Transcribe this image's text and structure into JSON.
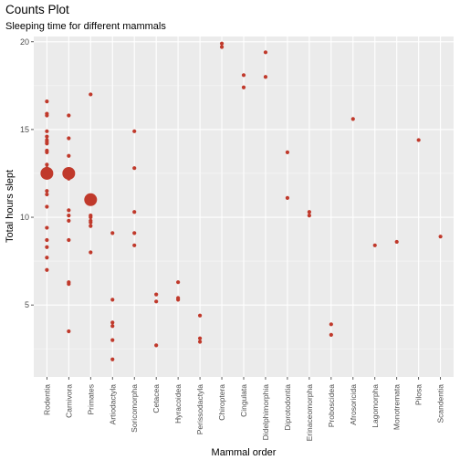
{
  "chart_data": {
    "type": "scatter",
    "title": "Counts Plot",
    "subtitle": "Sleeping time for different mammals",
    "xlabel": "Mammal order",
    "ylabel": "Total hours slept",
    "categories": [
      "Rodentia",
      "Carnivora",
      "Primates",
      "Artiodactyla",
      "Soricomorpha",
      "Cetacea",
      "Hyracoidea",
      "Perissodactyla",
      "Chiroptera",
      "Cingulata",
      "Didelphimorphia",
      "Diprotodontia",
      "Erinaceomorpha",
      "Proboscidea",
      "Afrosoricida",
      "Lagomorpha",
      "Monotremata",
      "Pilosa",
      "Scandentia"
    ],
    "ylim": [
      0.9,
      20.3
    ],
    "yticks": [
      5,
      10,
      15,
      20
    ],
    "grid": true,
    "point_color": "#c0392b",
    "panel_color": "#ebebeb",
    "points": [
      {
        "x": "Rodentia",
        "y": 16.6,
        "n": 1
      },
      {
        "x": "Rodentia",
        "y": 15.9,
        "n": 1
      },
      {
        "x": "Rodentia",
        "y": 15.8,
        "n": 1
      },
      {
        "x": "Rodentia",
        "y": 14.9,
        "n": 1
      },
      {
        "x": "Rodentia",
        "y": 14.6,
        "n": 1
      },
      {
        "x": "Rodentia",
        "y": 14.4,
        "n": 1
      },
      {
        "x": "Rodentia",
        "y": 14.3,
        "n": 1
      },
      {
        "x": "Rodentia",
        "y": 14.2,
        "n": 1
      },
      {
        "x": "Rodentia",
        "y": 13.8,
        "n": 1
      },
      {
        "x": "Rodentia",
        "y": 13.7,
        "n": 1
      },
      {
        "x": "Rodentia",
        "y": 13.0,
        "n": 1
      },
      {
        "x": "Rodentia",
        "y": 12.8,
        "n": 1
      },
      {
        "x": "Rodentia",
        "y": 12.5,
        "n": 3
      },
      {
        "x": "Rodentia",
        "y": 11.5,
        "n": 1
      },
      {
        "x": "Rodentia",
        "y": 11.3,
        "n": 1
      },
      {
        "x": "Rodentia",
        "y": 10.6,
        "n": 1
      },
      {
        "x": "Rodentia",
        "y": 9.4,
        "n": 1
      },
      {
        "x": "Rodentia",
        "y": 8.7,
        "n": 1
      },
      {
        "x": "Rodentia",
        "y": 8.3,
        "n": 1
      },
      {
        "x": "Rodentia",
        "y": 7.7,
        "n": 1
      },
      {
        "x": "Rodentia",
        "y": 7.0,
        "n": 1
      },
      {
        "x": "Carnivora",
        "y": 15.8,
        "n": 1
      },
      {
        "x": "Carnivora",
        "y": 14.5,
        "n": 1
      },
      {
        "x": "Carnivora",
        "y": 13.5,
        "n": 1
      },
      {
        "x": "Carnivora",
        "y": 12.5,
        "n": 3
      },
      {
        "x": "Carnivora",
        "y": 12.2,
        "n": 1
      },
      {
        "x": "Carnivora",
        "y": 10.4,
        "n": 1
      },
      {
        "x": "Carnivora",
        "y": 10.1,
        "n": 1
      },
      {
        "x": "Carnivora",
        "y": 9.8,
        "n": 1
      },
      {
        "x": "Carnivora",
        "y": 8.7,
        "n": 1
      },
      {
        "x": "Carnivora",
        "y": 6.3,
        "n": 1
      },
      {
        "x": "Carnivora",
        "y": 6.2,
        "n": 1
      },
      {
        "x": "Carnivora",
        "y": 3.5,
        "n": 1
      },
      {
        "x": "Primates",
        "y": 17.0,
        "n": 1
      },
      {
        "x": "Primates",
        "y": 11.0,
        "n": 3
      },
      {
        "x": "Primates",
        "y": 10.1,
        "n": 1
      },
      {
        "x": "Primates",
        "y": 10.0,
        "n": 1
      },
      {
        "x": "Primates",
        "y": 9.8,
        "n": 1
      },
      {
        "x": "Primates",
        "y": 9.7,
        "n": 1
      },
      {
        "x": "Primates",
        "y": 9.5,
        "n": 1
      },
      {
        "x": "Primates",
        "y": 8.0,
        "n": 1
      },
      {
        "x": "Artiodactyla",
        "y": 9.1,
        "n": 1
      },
      {
        "x": "Artiodactyla",
        "y": 5.3,
        "n": 1
      },
      {
        "x": "Artiodactyla",
        "y": 4.0,
        "n": 1
      },
      {
        "x": "Artiodactyla",
        "y": 3.8,
        "n": 1
      },
      {
        "x": "Artiodactyla",
        "y": 3.0,
        "n": 1
      },
      {
        "x": "Artiodactyla",
        "y": 1.9,
        "n": 1
      },
      {
        "x": "Soricomorpha",
        "y": 14.9,
        "n": 1
      },
      {
        "x": "Soricomorpha",
        "y": 12.8,
        "n": 1
      },
      {
        "x": "Soricomorpha",
        "y": 10.3,
        "n": 1
      },
      {
        "x": "Soricomorpha",
        "y": 9.1,
        "n": 1
      },
      {
        "x": "Soricomorpha",
        "y": 8.4,
        "n": 1
      },
      {
        "x": "Cetacea",
        "y": 5.6,
        "n": 1
      },
      {
        "x": "Cetacea",
        "y": 5.2,
        "n": 1
      },
      {
        "x": "Cetacea",
        "y": 2.7,
        "n": 1
      },
      {
        "x": "Hyracoidea",
        "y": 6.3,
        "n": 1
      },
      {
        "x": "Hyracoidea",
        "y": 5.4,
        "n": 1
      },
      {
        "x": "Hyracoidea",
        "y": 5.3,
        "n": 1
      },
      {
        "x": "Perissodactyla",
        "y": 4.4,
        "n": 1
      },
      {
        "x": "Perissodactyla",
        "y": 3.1,
        "n": 1
      },
      {
        "x": "Perissodactyla",
        "y": 2.9,
        "n": 1
      },
      {
        "x": "Chiroptera",
        "y": 19.9,
        "n": 1
      },
      {
        "x": "Chiroptera",
        "y": 19.7,
        "n": 1
      },
      {
        "x": "Cingulata",
        "y": 18.1,
        "n": 1
      },
      {
        "x": "Cingulata",
        "y": 17.4,
        "n": 1
      },
      {
        "x": "Didelphimorphia",
        "y": 19.4,
        "n": 1
      },
      {
        "x": "Didelphimorphia",
        "y": 18.0,
        "n": 1
      },
      {
        "x": "Diprotodontia",
        "y": 13.7,
        "n": 1
      },
      {
        "x": "Diprotodontia",
        "y": 11.1,
        "n": 1
      },
      {
        "x": "Erinaceomorpha",
        "y": 10.3,
        "n": 1
      },
      {
        "x": "Erinaceomorpha",
        "y": 10.1,
        "n": 1
      },
      {
        "x": "Proboscidea",
        "y": 3.9,
        "n": 1
      },
      {
        "x": "Proboscidea",
        "y": 3.3,
        "n": 1
      },
      {
        "x": "Afrosoricida",
        "y": 15.6,
        "n": 1
      },
      {
        "x": "Lagomorpha",
        "y": 8.4,
        "n": 1
      },
      {
        "x": "Monotremata",
        "y": 8.6,
        "n": 1
      },
      {
        "x": "Pilosa",
        "y": 14.4,
        "n": 1
      },
      {
        "x": "Scandentia",
        "y": 8.9,
        "n": 1
      }
    ]
  }
}
